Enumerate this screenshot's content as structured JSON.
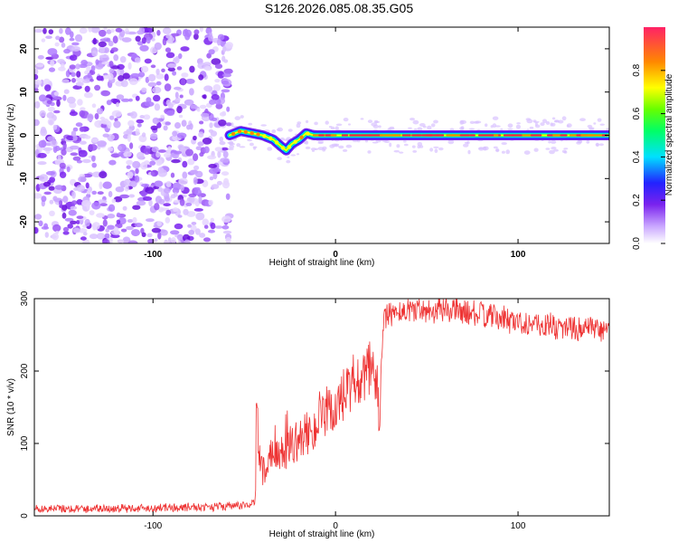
{
  "title": "S126.2026.085.08.35.G05",
  "chart_data": [
    {
      "type": "heatmap",
      "xlabel": "Height of straight line (km)",
      "ylabel": "Frequency (Hz)",
      "xlim": [
        -165,
        150
      ],
      "ylim": [
        -25,
        25
      ],
      "xticks": [
        -100,
        0,
        100
      ],
      "yticks": [
        -20,
        -10,
        0,
        10,
        20
      ],
      "noise_region_x": [
        -165,
        -58
      ],
      "ridge": {
        "x": [
          -58,
          -52,
          -46,
          -40,
          -34,
          -30,
          -27,
          -24,
          -20,
          -16,
          -12,
          0,
          50,
          100,
          150
        ],
        "freq_hz": [
          0,
          1,
          0.5,
          0,
          -1,
          -2.5,
          -3.5,
          -2,
          -1,
          0.5,
          0,
          0,
          0,
          0,
          0
        ]
      },
      "colorbar": {
        "label": "Normalized spectral amplitude",
        "range": [
          0,
          1
        ],
        "ticks": [
          0.0,
          0.2,
          0.4,
          0.6,
          0.8
        ],
        "tick_labels": [
          "0.0",
          "0.2",
          "0.4",
          "0.6",
          "0.8"
        ]
      }
    },
    {
      "type": "line",
      "xlabel": "Height of straight line (km)",
      "ylabel": "SNR (10 * v/v)",
      "xlim": [
        -165,
        150
      ],
      "ylim": [
        0,
        300
      ],
      "xticks": [
        -100,
        0,
        100
      ],
      "yticks": [
        0,
        100,
        200,
        300
      ],
      "series": [
        {
          "name": "SNR",
          "color": "#ee3333",
          "x": [
            -165,
            -120,
            -80,
            -50,
            -44,
            -43,
            -40,
            -30,
            -20,
            -10,
            0,
            10,
            20,
            23,
            24,
            26,
            30,
            40,
            60,
            80,
            100,
            120,
            150
          ],
          "y": [
            10,
            10,
            12,
            14,
            20,
            95,
            60,
            85,
            105,
            125,
            150,
            175,
            200,
            185,
            120,
            265,
            280,
            285,
            285,
            278,
            268,
            262,
            255
          ]
        }
      ]
    }
  ]
}
